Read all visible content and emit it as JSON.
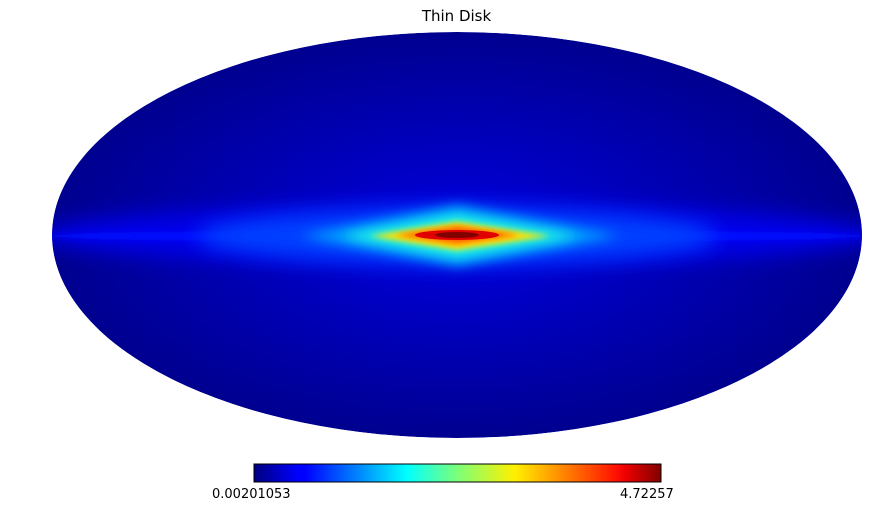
{
  "chart_data": {
    "type": "heatmap",
    "title": "Thin Disk",
    "projection": "mollweide",
    "colormap": "jet",
    "colorbar": {
      "min": 0.00201053,
      "max": 4.72257,
      "min_label": "0.00201053",
      "max_label": "4.72257",
      "orientation": "horizontal"
    },
    "legend": "bottom"
  },
  "colors": {
    "background_sky": "#00008f",
    "peak": "#800000"
  }
}
